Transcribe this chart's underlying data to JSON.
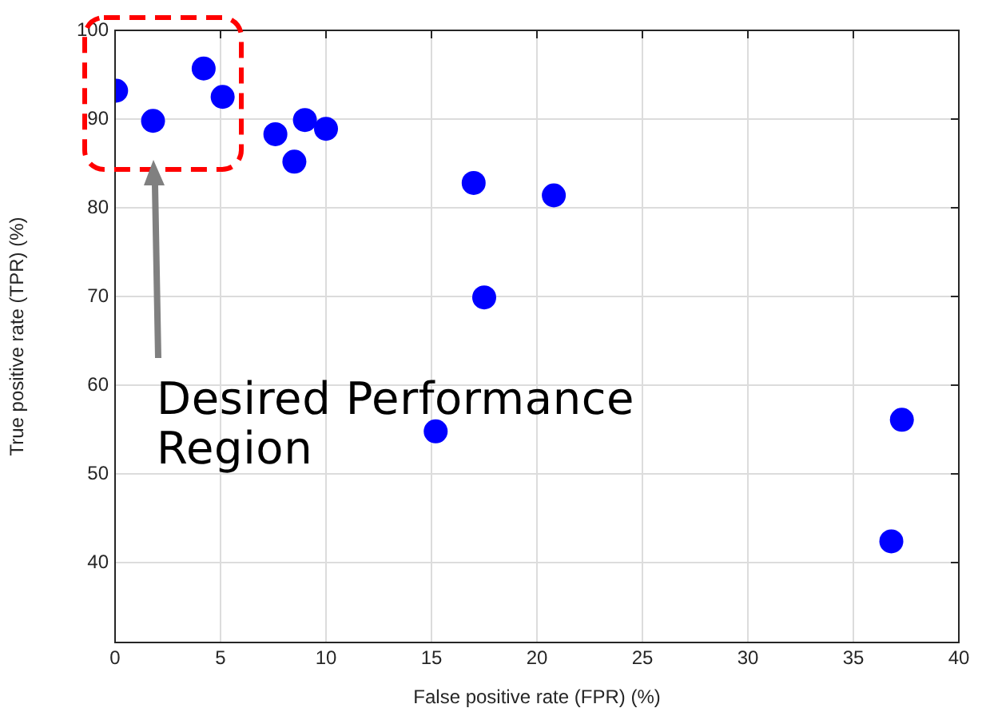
{
  "chart_data": {
    "type": "scatter",
    "xlabel": "False positive rate (FPR) (%)",
    "ylabel": "True positive rate (TPR) (%)",
    "x": [
      0.05,
      1.8,
      4.2,
      5.1,
      7.6,
      9.0,
      8.5,
      10.0,
      17.0,
      20.8,
      17.5,
      15.2,
      37.3,
      36.8
    ],
    "series": [
      {
        "color": "#0000ff",
        "values": [
          93.2,
          89.8,
          95.7,
          92.5,
          88.3,
          89.9,
          85.2,
          88.9,
          82.8,
          81.4,
          69.9,
          54.8,
          56.1,
          42.4
        ]
      }
    ],
    "xlim": [
      0,
      40
    ],
    "xticks": [
      0,
      5,
      10,
      15,
      20,
      25,
      30,
      35,
      40
    ],
    "ylim": [
      31,
      100
    ],
    "yticks": [
      40,
      50,
      60,
      70,
      80,
      90,
      100
    ],
    "grid": true,
    "legend": false,
    "marker": "circle",
    "annotations": [
      "Desired Performance Region"
    ]
  }
}
